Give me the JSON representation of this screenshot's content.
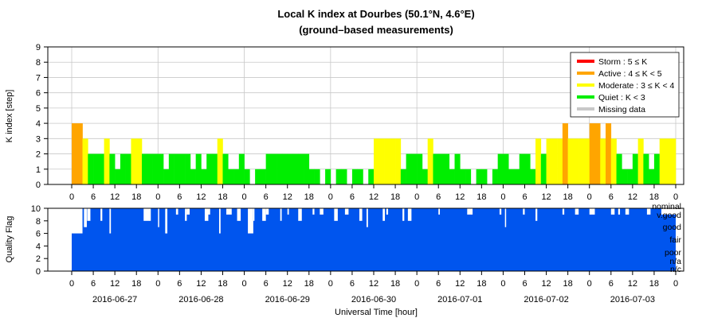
{
  "chart_data": [
    {
      "type": "bar",
      "title": "Local K index at Dourbes (50.1°N, 4.6°E)",
      "subtitle": "(ground–based measurements)",
      "ylabel": "K index [step]",
      "ylim": [
        0,
        9
      ],
      "yticks": [
        "0",
        "1",
        "2",
        "3",
        "4",
        "5",
        "6",
        "7",
        "8",
        "9"
      ],
      "grid": true,
      "legend_position": "top-right",
      "bar_width_hours": 1.5,
      "legend": [
        {
          "key": "storm",
          "label": "Storm : 5 ≤ K",
          "color": "#ff0000"
        },
        {
          "key": "active",
          "label": "Active : 4 ≤ K < 5",
          "color": "#ffa500"
        },
        {
          "key": "moderate",
          "label": "Moderate : 3 ≤ K < 4",
          "color": "#ffff00"
        },
        {
          "key": "quiet",
          "label": "Quiet : K < 3",
          "color": "#00ee00"
        },
        {
          "key": "missing",
          "label": "Missing data",
          "color": "#c8c8c8"
        }
      ],
      "series": [
        {
          "day": "2016-06-27",
          "x_hours": [
            0,
            1.5,
            3,
            4.5,
            6,
            7.5,
            9,
            10.5,
            12,
            13.5,
            15,
            16.5,
            18,
            19.5,
            21,
            22.5
          ],
          "values": [
            4,
            4,
            3,
            2,
            2,
            2,
            3,
            2,
            1,
            2,
            2,
            3,
            3,
            2,
            2,
            2
          ]
        },
        {
          "day": "2016-06-28",
          "x_hours": [
            0,
            1.5,
            3,
            4.5,
            6,
            7.5,
            9,
            10.5,
            12,
            13.5,
            15,
            16.5,
            18,
            19.5,
            21,
            22.5
          ],
          "values": [
            2,
            1,
            2,
            2,
            2,
            2,
            1,
            2,
            1,
            2,
            2,
            3,
            2,
            1,
            1,
            2
          ]
        },
        {
          "day": "2016-06-29",
          "x_hours": [
            0,
            1.5,
            3,
            4.5,
            6,
            7.5,
            9,
            10.5,
            12,
            13.5,
            15,
            16.5,
            18,
            19.5,
            21,
            22.5
          ],
          "values": [
            1,
            0,
            1,
            1,
            2,
            2,
            2,
            2,
            2,
            2,
            2,
            2,
            1,
            1,
            0,
            1
          ]
        },
        {
          "day": "2016-06-30",
          "x_hours": [
            0,
            1.5,
            3,
            4.5,
            6,
            7.5,
            9,
            10.5,
            12,
            13.5,
            15,
            16.5,
            18,
            19.5,
            21,
            22.5
          ],
          "values": [
            0,
            1,
            1,
            0,
            1,
            1,
            0,
            1,
            3,
            3,
            3,
            3,
            3,
            1,
            2,
            2
          ]
        },
        {
          "day": "2016-07-01",
          "x_hours": [
            0,
            1.5,
            3,
            4.5,
            6,
            7.5,
            9,
            10.5,
            12,
            13.5,
            15,
            16.5,
            18,
            19.5,
            21,
            22.5
          ],
          "values": [
            2,
            1,
            3,
            2,
            2,
            2,
            1,
            2,
            1,
            1,
            0,
            1,
            1,
            0,
            1,
            2
          ]
        },
        {
          "day": "2016-07-02",
          "x_hours": [
            0,
            1.5,
            3,
            4.5,
            6,
            7.5,
            9,
            10.5,
            12,
            13.5,
            15,
            16.5,
            18,
            19.5,
            21,
            22.5
          ],
          "values": [
            2,
            1,
            1,
            2,
            2,
            1,
            3,
            2,
            3,
            3,
            3,
            4,
            3,
            3,
            3,
            3
          ]
        },
        {
          "day": "2016-07-03",
          "x_hours": [
            0,
            1.5,
            3,
            4.5,
            6,
            7.5,
            9,
            10.5,
            12,
            13.5,
            15,
            16.5,
            18,
            19.5,
            21,
            22.5
          ],
          "values": [
            4,
            4,
            3,
            4,
            3,
            2,
            1,
            1,
            2,
            3,
            2,
            1,
            2,
            3,
            3,
            3
          ]
        }
      ]
    },
    {
      "type": "bar",
      "ylabel": "Quality Flag",
      "ylim": [
        0,
        10
      ],
      "yticks": [
        "0",
        "2",
        "4",
        "6",
        "8",
        "10"
      ],
      "bar_color": "#0055ee",
      "default_value": 10,
      "category_labels": [
        "nominal",
        "v.good",
        "good",
        "fair",
        "poor",
        "n/a",
        "n/c"
      ],
      "dips": [
        {
          "day": "2016-06-27",
          "hour": 0,
          "width": 3,
          "value": 6
        },
        {
          "day": "2016-06-27",
          "hour": 3.4,
          "width": 0.8,
          "value": 7
        },
        {
          "day": "2016-06-27",
          "hour": 4.3,
          "width": 0.9,
          "value": 8
        },
        {
          "day": "2016-06-27",
          "hour": 8,
          "width": 0.5,
          "value": 8
        },
        {
          "day": "2016-06-27",
          "hour": 10.5,
          "width": 0.4,
          "value": 6
        },
        {
          "day": "2016-06-27",
          "hour": 20,
          "width": 2,
          "value": 8
        },
        {
          "day": "2016-06-28",
          "hour": 0,
          "width": 0.3,
          "value": 7
        },
        {
          "day": "2016-06-28",
          "hour": 2,
          "width": 0.6,
          "value": 6
        },
        {
          "day": "2016-06-28",
          "hour": 5,
          "width": 0.6,
          "value": 9
        },
        {
          "day": "2016-06-28",
          "hour": 7.5,
          "width": 0.5,
          "value": 8
        },
        {
          "day": "2016-06-28",
          "hour": 8,
          "width": 0.8,
          "value": 9
        },
        {
          "day": "2016-06-28",
          "hour": 13,
          "width": 1,
          "value": 8
        },
        {
          "day": "2016-06-28",
          "hour": 14,
          "width": 0.5,
          "value": 9
        },
        {
          "day": "2016-06-28",
          "hour": 17,
          "width": 0.4,
          "value": 6
        },
        {
          "day": "2016-06-28",
          "hour": 19,
          "width": 1.5,
          "value": 9
        },
        {
          "day": "2016-06-28",
          "hour": 22,
          "width": 1,
          "value": 8
        },
        {
          "day": "2016-06-29",
          "hour": 1,
          "width": 1.5,
          "value": 6
        },
        {
          "day": "2016-06-29",
          "hour": 2.5,
          "width": 0.3,
          "value": 8
        },
        {
          "day": "2016-06-29",
          "hour": 5,
          "width": 1,
          "value": 8
        },
        {
          "day": "2016-06-29",
          "hour": 6,
          "width": 0.8,
          "value": 9
        },
        {
          "day": "2016-06-29",
          "hour": 10,
          "width": 0.4,
          "value": 8
        },
        {
          "day": "2016-06-29",
          "hour": 12,
          "width": 0.4,
          "value": 9
        },
        {
          "day": "2016-06-29",
          "hour": 15,
          "width": 1,
          "value": 8
        },
        {
          "day": "2016-06-29",
          "hour": 19,
          "width": 0.5,
          "value": 9
        },
        {
          "day": "2016-06-29",
          "hour": 21,
          "width": 1,
          "value": 9
        },
        {
          "day": "2016-06-30",
          "hour": 1,
          "width": 1,
          "value": 8
        },
        {
          "day": "2016-06-30",
          "hour": 4,
          "width": 1,
          "value": 9
        },
        {
          "day": "2016-06-30",
          "hour": 8,
          "width": 0.8,
          "value": 8
        },
        {
          "day": "2016-06-30",
          "hour": 10,
          "width": 0.4,
          "value": 7
        },
        {
          "day": "2016-06-30",
          "hour": 14.5,
          "width": 0.6,
          "value": 8
        },
        {
          "day": "2016-06-30",
          "hour": 15.5,
          "width": 0.5,
          "value": 9
        },
        {
          "day": "2016-06-30",
          "hour": 20,
          "width": 0.5,
          "value": 8
        },
        {
          "day": "2016-06-30",
          "hour": 21.5,
          "width": 1,
          "value": 8
        },
        {
          "day": "2016-07-01",
          "hour": 6,
          "width": 0.4,
          "value": 9
        },
        {
          "day": "2016-07-01",
          "hour": 14,
          "width": 1.5,
          "value": 9
        },
        {
          "day": "2016-07-01",
          "hour": 23,
          "width": 0.5,
          "value": 9
        },
        {
          "day": "2016-07-02",
          "hour": 0.5,
          "width": 0.3,
          "value": 7
        },
        {
          "day": "2016-07-02",
          "hour": 5.5,
          "width": 0.5,
          "value": 9
        },
        {
          "day": "2016-07-02",
          "hour": 9,
          "width": 0.5,
          "value": 8
        },
        {
          "day": "2016-07-02",
          "hour": 16.5,
          "width": 0.5,
          "value": 9
        },
        {
          "day": "2016-07-02",
          "hour": 20,
          "width": 1,
          "value": 9
        },
        {
          "day": "2016-07-03",
          "hour": 0,
          "width": 1.5,
          "value": 9
        },
        {
          "day": "2016-07-03",
          "hour": 6,
          "width": 1,
          "value": 9
        },
        {
          "day": "2016-07-03",
          "hour": 8,
          "width": 0.5,
          "value": 9
        },
        {
          "day": "2016-07-03",
          "hour": 10,
          "width": 1,
          "value": 9
        },
        {
          "day": "2016-07-03",
          "hour": 16,
          "width": 1,
          "value": 9
        },
        {
          "day": "2016-07-03",
          "hour": 20,
          "width": 4,
          "value": 9
        }
      ]
    }
  ],
  "x_axis": {
    "xlabel": "Universal Time [hour]",
    "hour_tick_labels": [
      "0",
      "6",
      "12",
      "18"
    ],
    "end_tick_label": "0",
    "days": [
      "2016-06-27",
      "2016-06-28",
      "2016-06-29",
      "2016-06-30",
      "2016-07-01",
      "2016-07-02",
      "2016-07-03"
    ]
  }
}
